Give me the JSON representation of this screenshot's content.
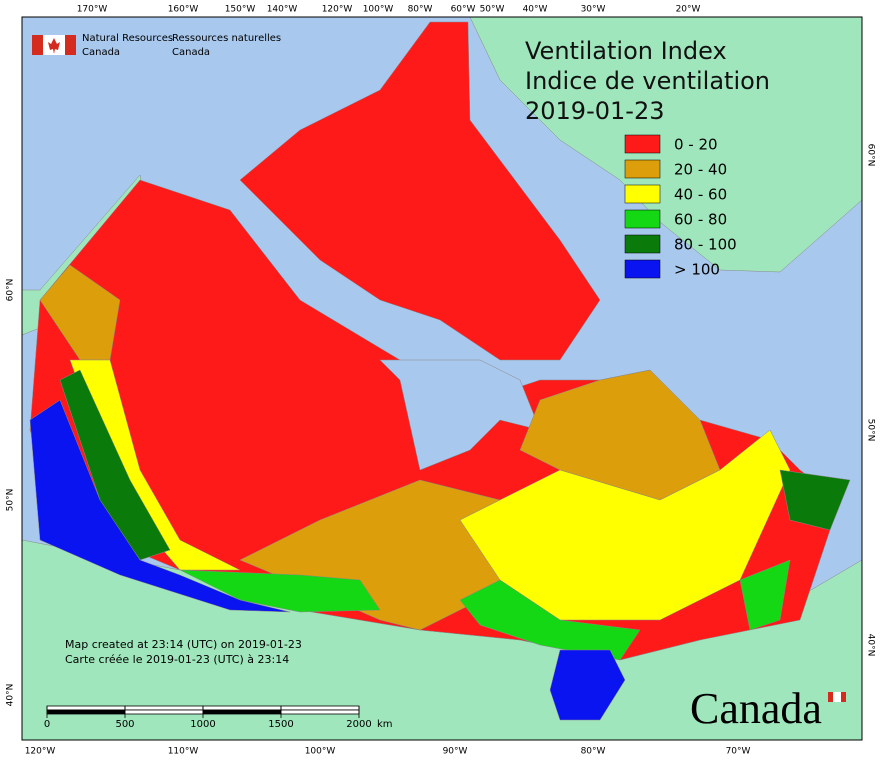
{
  "agency": {
    "en": [
      "Natural Resources",
      "Canada"
    ],
    "fr": [
      "Ressources naturelles",
      "Canada"
    ]
  },
  "title": {
    "en": "Ventilation Index",
    "fr": "Indice de ventilation",
    "date": "2019-01-23"
  },
  "legend": [
    {
      "label": "0 - 20",
      "color": "#ff1a1a"
    },
    {
      "label": "20 - 40",
      "color": "#dc9e0a"
    },
    {
      "label": "40 - 60",
      "color": "#ffff00"
    },
    {
      "label": "60 - 80",
      "color": "#14d814"
    },
    {
      "label": "80 - 100",
      "color": "#0a7a0a"
    },
    {
      "label": "> 100",
      "color": "#0a14f0"
    }
  ],
  "graticule": {
    "top": [
      "170°W",
      "160°W",
      "150°W",
      "140°W",
      "120°W",
      "100°W",
      "80°W",
      "60°W",
      "50°W",
      "40°W",
      "30°W",
      "20°W"
    ],
    "bottom": [
      "120°W",
      "110°W",
      "100°W",
      "90°W",
      "80°W",
      "70°W"
    ],
    "left": [
      "60°N",
      "50°N",
      "40°N"
    ],
    "right": [
      "60°N",
      "50°N",
      "40°N"
    ]
  },
  "credits": [
    "Map created at 23:14 (UTC) on 2019-01-23",
    "Carte créée le 2019-01-23 (UTC) à 23:14"
  ],
  "scale_bar": {
    "ticks": [
      0,
      500,
      1000,
      1500,
      2000
    ],
    "unit": "km"
  },
  "wordmark": "Canada"
}
